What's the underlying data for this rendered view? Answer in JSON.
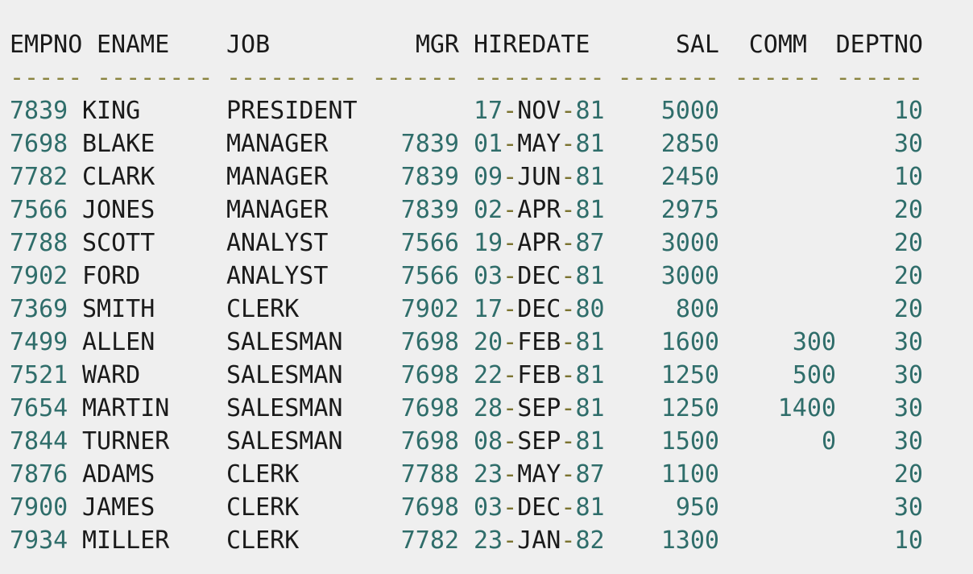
{
  "columns": [
    "EMPNO",
    "ENAME",
    "JOB",
    "MGR",
    "HIREDATE",
    "SAL",
    "COMM",
    "DEPTNO"
  ],
  "separators": [
    "-----",
    "--------",
    "---------",
    "------",
    "---------",
    "-------",
    "------",
    "------"
  ],
  "rows": [
    {
      "empno": "7839",
      "ename": "KING",
      "job": "PRESIDENT",
      "mgr": "",
      "hire_day": "17",
      "hire_mon": "NOV",
      "hire_yr": "81",
      "sal": "5000",
      "comm": "",
      "deptno": "10"
    },
    {
      "empno": "7698",
      "ename": "BLAKE",
      "job": "MANAGER",
      "mgr": "7839",
      "hire_day": "01",
      "hire_mon": "MAY",
      "hire_yr": "81",
      "sal": "2850",
      "comm": "",
      "deptno": "30"
    },
    {
      "empno": "7782",
      "ename": "CLARK",
      "job": "MANAGER",
      "mgr": "7839",
      "hire_day": "09",
      "hire_mon": "JUN",
      "hire_yr": "81",
      "sal": "2450",
      "comm": "",
      "deptno": "10"
    },
    {
      "empno": "7566",
      "ename": "JONES",
      "job": "MANAGER",
      "mgr": "7839",
      "hire_day": "02",
      "hire_mon": "APR",
      "hire_yr": "81",
      "sal": "2975",
      "comm": "",
      "deptno": "20"
    },
    {
      "empno": "7788",
      "ename": "SCOTT",
      "job": "ANALYST",
      "mgr": "7566",
      "hire_day": "19",
      "hire_mon": "APR",
      "hire_yr": "87",
      "sal": "3000",
      "comm": "",
      "deptno": "20"
    },
    {
      "empno": "7902",
      "ename": "FORD",
      "job": "ANALYST",
      "mgr": "7566",
      "hire_day": "03",
      "hire_mon": "DEC",
      "hire_yr": "81",
      "sal": "3000",
      "comm": "",
      "deptno": "20"
    },
    {
      "empno": "7369",
      "ename": "SMITH",
      "job": "CLERK",
      "mgr": "7902",
      "hire_day": "17",
      "hire_mon": "DEC",
      "hire_yr": "80",
      "sal": "800",
      "comm": "",
      "deptno": "20"
    },
    {
      "empno": "7499",
      "ename": "ALLEN",
      "job": "SALESMAN",
      "mgr": "7698",
      "hire_day": "20",
      "hire_mon": "FEB",
      "hire_yr": "81",
      "sal": "1600",
      "comm": "300",
      "deptno": "30"
    },
    {
      "empno": "7521",
      "ename": "WARD",
      "job": "SALESMAN",
      "mgr": "7698",
      "hire_day": "22",
      "hire_mon": "FEB",
      "hire_yr": "81",
      "sal": "1250",
      "comm": "500",
      "deptno": "30"
    },
    {
      "empno": "7654",
      "ename": "MARTIN",
      "job": "SALESMAN",
      "mgr": "7698",
      "hire_day": "28",
      "hire_mon": "SEP",
      "hire_yr": "81",
      "sal": "1250",
      "comm": "1400",
      "deptno": "30"
    },
    {
      "empno": "7844",
      "ename": "TURNER",
      "job": "SALESMAN",
      "mgr": "7698",
      "hire_day": "08",
      "hire_mon": "SEP",
      "hire_yr": "81",
      "sal": "1500",
      "comm": "0",
      "deptno": "30"
    },
    {
      "empno": "7876",
      "ename": "ADAMS",
      "job": "CLERK",
      "mgr": "7788",
      "hire_day": "23",
      "hire_mon": "MAY",
      "hire_yr": "87",
      "sal": "1100",
      "comm": "",
      "deptno": "20"
    },
    {
      "empno": "7900",
      "ename": "JAMES",
      "job": "CLERK",
      "mgr": "7698",
      "hire_day": "03",
      "hire_mon": "DEC",
      "hire_yr": "81",
      "sal": "950",
      "comm": "",
      "deptno": "30"
    },
    {
      "empno": "7934",
      "ename": "MILLER",
      "job": "CLERK",
      "mgr": "7782",
      "hire_day": "23",
      "hire_mon": "JAN",
      "hire_yr": "82",
      "sal": "1300",
      "comm": "",
      "deptno": "10"
    }
  ],
  "colors": {
    "background": "#efefef",
    "text": "#1a1a1a",
    "number": "#2f6d6a",
    "separator": "#8a8440"
  }
}
